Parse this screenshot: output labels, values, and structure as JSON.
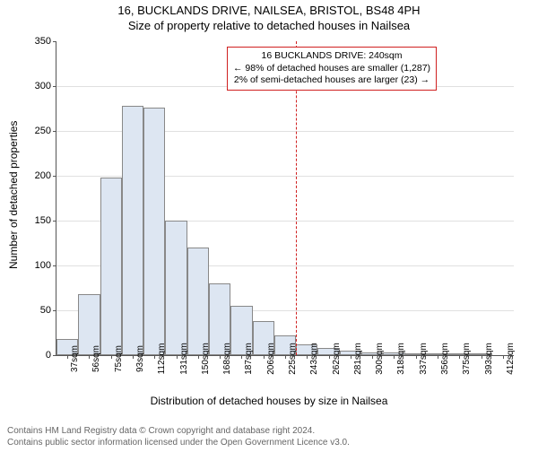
{
  "title": "16, BUCKLANDS DRIVE, NAILSEA, BRISTOL, BS48 4PH",
  "subtitle": "Size of property relative to detached houses in Nailsea",
  "ylabel": "Number of detached properties",
  "xlabel": "Distribution of detached houses by size in Nailsea",
  "chart": {
    "type": "histogram",
    "bar_fill": "#dde6f2",
    "bar_border": "#888888",
    "grid_color": "#e0e0e0",
    "axis_color": "#555555",
    "background": "#ffffff",
    "ylim": [
      0,
      350
    ],
    "ytick_step": 50,
    "bin_labels": [
      "37sqm",
      "56sqm",
      "75sqm",
      "93sqm",
      "112sqm",
      "131sqm",
      "150sqm",
      "168sqm",
      "187sqm",
      "206sqm",
      "225sqm",
      "243sqm",
      "262sqm",
      "281sqm",
      "300sqm",
      "318sqm",
      "337sqm",
      "356sqm",
      "375sqm",
      "393sqm",
      "412sqm"
    ],
    "bin_values": [
      18,
      68,
      198,
      278,
      276,
      150,
      120,
      80,
      55,
      38,
      22,
      12,
      8,
      5,
      3,
      3,
      2,
      1,
      1,
      1,
      0
    ],
    "reference": {
      "bin_index_after": 10,
      "color": "#d02020",
      "dash": true
    },
    "callout": {
      "border_color": "#d02020",
      "lines": [
        "16 BUCKLANDS DRIVE: 240sqm",
        "← 98% of detached houses are smaller (1,287)",
        "2% of semi-detached houses are larger (23) →"
      ]
    }
  },
  "footer": {
    "line1": "Contains HM Land Registry data © Crown copyright and database right 2024.",
    "line2": "Contains public sector information licensed under the Open Government Licence v3.0."
  }
}
